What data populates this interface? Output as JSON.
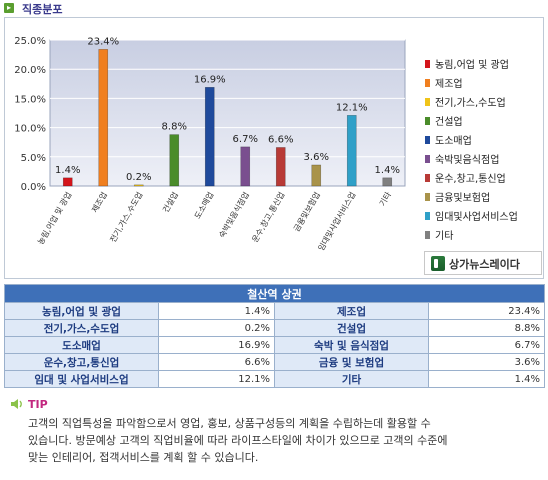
{
  "header": {
    "icon": "arrow-right-icon",
    "title": "직종분포"
  },
  "chart_data": {
    "type": "bar",
    "title": "",
    "xlabel": "",
    "ylabel": "",
    "ylim": [
      0,
      25
    ],
    "y_ticks": [
      "0.0%",
      "5.0%",
      "10.0%",
      "15.0%",
      "20.0%",
      "25.0%"
    ],
    "grid": true,
    "legend_position": "right",
    "categories": [
      "농림,어업 및 광업",
      "제조업",
      "전기,가스,수도업",
      "건설업",
      "도소매업",
      "숙박및음식점업",
      "운수,창고,통신업",
      "금융및보험업",
      "임대및사업서비스업",
      "기타"
    ],
    "values": [
      1.4,
      23.4,
      0.2,
      8.8,
      16.9,
      6.7,
      6.6,
      3.6,
      12.1,
      1.4
    ],
    "value_labels": [
      "1.4%",
      "23.4%",
      "0.2%",
      "8.8%",
      "16.9%",
      "6.7%",
      "6.6%",
      "3.6%",
      "12.1%",
      "1.4%"
    ],
    "legend": [
      "농림,어업 및 광업",
      "제조업",
      "전기,가스,수도업",
      "건설업",
      "도소매업",
      "숙박및음식점업",
      "운수,창고,통신업",
      "금융및보험업",
      "임대및사업서비스업",
      "기타"
    ],
    "colors": [
      "#d4151b",
      "#f07f1f",
      "#f0c419",
      "#4a8c2a",
      "#1f4a9c",
      "#7a4f8f",
      "#b83a36",
      "#a9934a",
      "#2fa0c8",
      "#808080"
    ]
  },
  "brand": {
    "text": "상가뉴스레이다",
    "icon": "brand-logo-icon"
  },
  "table": {
    "title": "철산역 상권",
    "rows": [
      [
        {
          "label": "농림,어업 및 광업",
          "value": "1.4%"
        },
        {
          "label": "제조업",
          "value": "23.4%"
        }
      ],
      [
        {
          "label": "전기,가스,수도업",
          "value": "0.2%"
        },
        {
          "label": "건설업",
          "value": "8.8%"
        }
      ],
      [
        {
          "label": "도소매업",
          "value": "16.9%"
        },
        {
          "label": "숙박 및 음식점업",
          "value": "6.7%"
        }
      ],
      [
        {
          "label": "운수,창고,통신업",
          "value": "6.6%"
        },
        {
          "label": "금융 및 보험업",
          "value": "3.6%"
        }
      ],
      [
        {
          "label": "임대 및 사업서비스업",
          "value": "12.1%"
        },
        {
          "label": "기타",
          "value": "1.4%"
        }
      ]
    ]
  },
  "tip": {
    "icon": "speaker-icon",
    "title": "TIP",
    "lines": [
      "고객의 직업특성을 파악함으로서 영업, 홍보, 상품구성등의 계획을 수립하는데 활용할 수",
      "있습니다. 방문예상 고객의 직업비율에 따라 라이프스타일에 차이가 있으므로 고객의 수준에",
      "맞는 인테리어, 접객서비스를 계획 할 수 있습니다."
    ]
  }
}
